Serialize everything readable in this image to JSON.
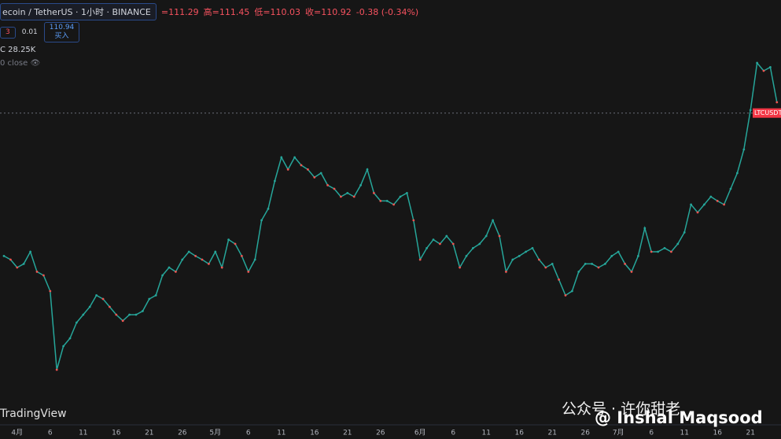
{
  "header": {
    "symbol": "ecoin / TetherUS · 1小时 · BINANCE",
    "open": "=111.29",
    "high": "高=111.45",
    "low": "低=110.03",
    "close": "收=110.92",
    "change": "-0.38 (-0.34%)",
    "sell_fragment": "3",
    "spread": "0.01",
    "buy_price": "110.94",
    "buy_label": "买入",
    "volume": "C 28.25K",
    "volume_value": "28.25K",
    "close_label": "0 close"
  },
  "watermark": "TradingView",
  "wechat": "公众号 · 许你甜老",
  "author": "@ Inshal Maqsood",
  "chart_data": {
    "type": "line",
    "color": "#26a69a",
    "categories": [
      null,
      null,
      "4月",
      null,
      null,
      null,
      null,
      "6",
      null,
      null,
      null,
      null,
      "11",
      null,
      null,
      null,
      null,
      "16",
      null,
      null,
      null,
      null,
      "21",
      null,
      null,
      null,
      null,
      "26",
      null,
      null,
      null,
      null,
      "5月",
      null,
      null,
      null,
      null,
      "6",
      null,
      null,
      null,
      null,
      "11",
      null,
      null,
      null,
      null,
      "16",
      null,
      null,
      null,
      null,
      "21",
      null,
      null,
      null,
      null,
      "26",
      null,
      null,
      null,
      null,
      null,
      "6月",
      null,
      null,
      null,
      null,
      "6",
      null,
      null,
      null,
      null,
      "11",
      null,
      null,
      null,
      null,
      "16",
      null,
      null,
      null,
      null,
      "21",
      null,
      null,
      null,
      null,
      "26",
      null,
      null,
      null,
      null,
      "7月",
      null,
      null,
      null,
      null,
      "6",
      null,
      null,
      null,
      null,
      "11",
      null,
      null,
      null,
      null,
      "16",
      null,
      null,
      null,
      null,
      "21",
      null,
      null,
      null,
      null
    ],
    "values": [
      87.3,
      86.7,
      85.4,
      86.0,
      88.0,
      84.7,
      84.1,
      81.5,
      68.5,
      72.4,
      73.7,
      76.3,
      77.6,
      78.9,
      80.8,
      80.2,
      78.9,
      77.6,
      76.6,
      77.6,
      77.6,
      78.2,
      80.2,
      80.8,
      84.1,
      85.4,
      84.7,
      86.7,
      88.0,
      87.3,
      86.7,
      86.0,
      88.0,
      85.4,
      90.0,
      89.3,
      87.3,
      84.7,
      86.7,
      93.2,
      95.1,
      99.7,
      103.6,
      101.6,
      103.6,
      102.3,
      101.6,
      100.3,
      101.0,
      99.0,
      98.4,
      97.1,
      97.7,
      97.1,
      99.0,
      101.6,
      97.7,
      96.4,
      96.4,
      95.8,
      97.1,
      97.7,
      93.2,
      86.7,
      88.6,
      90.0,
      89.3,
      90.6,
      89.3,
      85.4,
      87.3,
      88.6,
      89.3,
      90.6,
      93.2,
      90.6,
      84.7,
      86.7,
      87.3,
      88.0,
      88.6,
      86.7,
      85.4,
      86.0,
      83.4,
      80.8,
      81.5,
      84.7,
      86.0,
      86.0,
      85.4,
      86.0,
      87.3,
      88.0,
      86.0,
      84.7,
      87.3,
      91.9,
      88.0,
      88.0,
      88.6,
      88.0,
      89.3,
      91.2,
      95.8,
      94.5,
      95.8,
      97.1,
      96.4,
      95.8,
      98.4,
      101.0,
      104.9,
      111.4,
      119.2,
      117.9,
      118.5,
      112.7
    ],
    "ylim": [
      59.4,
      129.6
    ],
    "price_line": {
      "label": "LTCUSDT",
      "value": 110.92,
      "color": "#f23645"
    }
  }
}
